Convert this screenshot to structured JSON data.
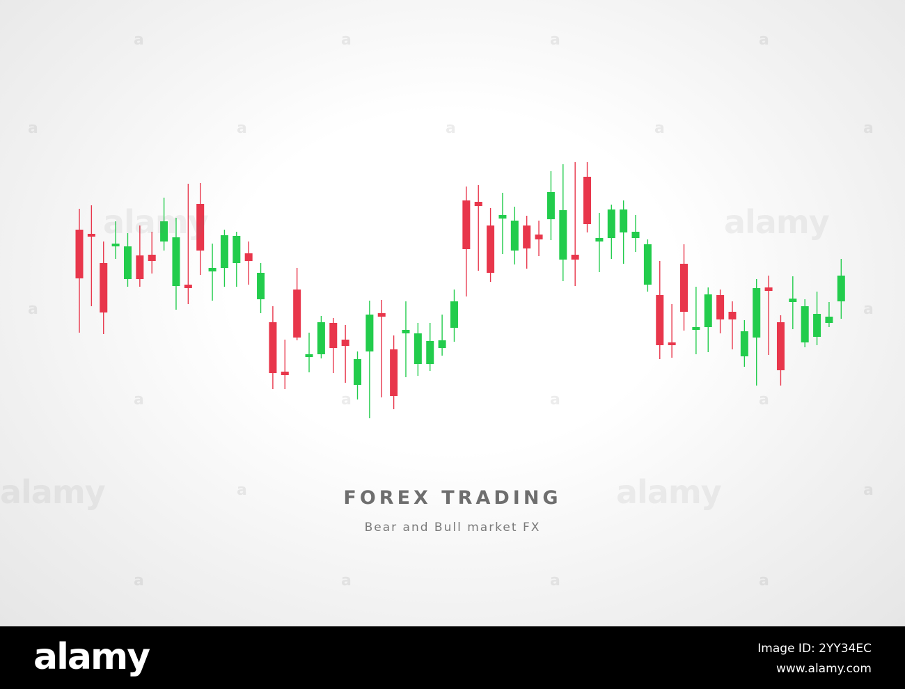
{
  "chart_data": {
    "type": "candlestick",
    "title": "FOREX TRADING",
    "subtitle": "Bear and Bull market FX",
    "colors": {
      "bull": "#22cc4c",
      "bear": "#e8364b"
    },
    "y_axis_note": "no axis printed; values in chart price units (higher = up)",
    "candles": [
      {
        "c": "bear",
        "o": 570,
        "cl": 500,
        "h": 600,
        "l": 422
      },
      {
        "c": "bear",
        "o": 564,
        "cl": 562,
        "h": 605,
        "l": 460
      },
      {
        "c": "bear",
        "o": 522,
        "cl": 451,
        "h": 553,
        "l": 420
      },
      {
        "c": "bull",
        "o": 547,
        "cl": 550,
        "h": 582,
        "l": 528
      },
      {
        "c": "bull",
        "o": 499,
        "cl": 546,
        "h": 565,
        "l": 488
      },
      {
        "c": "bear",
        "o": 533,
        "cl": 499,
        "h": 576,
        "l": 488
      },
      {
        "c": "bear",
        "o": 534,
        "cl": 525,
        "h": 567,
        "l": 507
      },
      {
        "c": "bull",
        "o": 553,
        "cl": 582,
        "h": 616,
        "l": 540
      },
      {
        "c": "bull",
        "o": 489,
        "cl": 559,
        "h": 587,
        "l": 455
      },
      {
        "c": "bear",
        "o": 491,
        "cl": 486,
        "h": 636,
        "l": 463
      },
      {
        "c": "bear",
        "o": 607,
        "cl": 540,
        "h": 637,
        "l": 505
      },
      {
        "c": "bull",
        "o": 510,
        "cl": 515,
        "h": 550,
        "l": 468
      },
      {
        "c": "bull",
        "o": 515,
        "cl": 562,
        "h": 570,
        "l": 488
      },
      {
        "c": "bull",
        "o": 522,
        "cl": 561,
        "h": 567,
        "l": 488
      },
      {
        "c": "bear",
        "o": 536,
        "cl": 525,
        "h": 553,
        "l": 491
      },
      {
        "c": "bull",
        "o": 470,
        "cl": 508,
        "h": 522,
        "l": 450
      },
      {
        "c": "bear",
        "o": 437,
        "cl": 364,
        "h": 460,
        "l": 341
      },
      {
        "c": "bear",
        "o": 366,
        "cl": 361,
        "h": 412,
        "l": 341
      },
      {
        "c": "bear",
        "o": 484,
        "cl": 415,
        "h": 515,
        "l": 411
      },
      {
        "c": "bull",
        "o": 387,
        "cl": 391,
        "h": 422,
        "l": 365
      },
      {
        "c": "bull",
        "o": 391,
        "cl": 437,
        "h": 446,
        "l": 385
      },
      {
        "c": "bear",
        "o": 436,
        "cl": 400,
        "h": 443,
        "l": 364
      },
      {
        "c": "bear",
        "o": 412,
        "cl": 403,
        "h": 433,
        "l": 350
      },
      {
        "c": "bull",
        "o": 347,
        "cl": 384,
        "h": 395,
        "l": 326
      },
      {
        "c": "bull",
        "o": 395,
        "cl": 448,
        "h": 468,
        "l": 299
      },
      {
        "c": "bear",
        "o": 450,
        "cl": 445,
        "h": 469,
        "l": 329
      },
      {
        "c": "bear",
        "o": 398,
        "cl": 331,
        "h": 418,
        "l": 312
      },
      {
        "c": "bull",
        "o": 421,
        "cl": 426,
        "h": 467,
        "l": 358
      },
      {
        "c": "bull",
        "o": 377,
        "cl": 421,
        "h": 436,
        "l": 360
      },
      {
        "c": "bull",
        "o": 377,
        "cl": 410,
        "h": 436,
        "l": 367
      },
      {
        "c": "bull",
        "o": 400,
        "cl": 411,
        "h": 448,
        "l": 389
      },
      {
        "c": "bull",
        "o": 429,
        "cl": 467,
        "h": 484,
        "l": 409
      },
      {
        "c": "bear",
        "o": 612,
        "cl": 542,
        "h": 632,
        "l": 474
      },
      {
        "c": "bear",
        "o": 610,
        "cl": 604,
        "h": 634,
        "l": 511
      },
      {
        "c": "bear",
        "o": 576,
        "cl": 508,
        "h": 601,
        "l": 495
      },
      {
        "c": "bull",
        "o": 586,
        "cl": 591,
        "h": 623,
        "l": 535
      },
      {
        "c": "bull",
        "o": 540,
        "cl": 583,
        "h": 603,
        "l": 520
      },
      {
        "c": "bear",
        "o": 576,
        "cl": 543,
        "h": 590,
        "l": 514
      },
      {
        "c": "bear",
        "o": 563,
        "cl": 556,
        "h": 583,
        "l": 532
      },
      {
        "c": "bull",
        "o": 585,
        "cl": 624,
        "h": 654,
        "l": 555
      },
      {
        "c": "bull",
        "o": 527,
        "cl": 598,
        "h": 664,
        "l": 496
      },
      {
        "c": "bear",
        "o": 534,
        "cl": 527,
        "h": 667,
        "l": 489
      },
      {
        "c": "bear",
        "o": 646,
        "cl": 578,
        "h": 667,
        "l": 566
      },
      {
        "c": "bull",
        "o": 553,
        "cl": 558,
        "h": 594,
        "l": 509
      },
      {
        "c": "bull",
        "o": 558,
        "cl": 599,
        "h": 606,
        "l": 528
      },
      {
        "c": "bull",
        "o": 566,
        "cl": 599,
        "h": 612,
        "l": 521
      },
      {
        "c": "bull",
        "o": 558,
        "cl": 567,
        "h": 591,
        "l": 538
      },
      {
        "c": "bull",
        "o": 491,
        "cl": 549,
        "h": 556,
        "l": 481
      },
      {
        "c": "bear",
        "o": 476,
        "cl": 404,
        "h": 525,
        "l": 384
      },
      {
        "c": "bear",
        "o": 408,
        "cl": 404,
        "h": 463,
        "l": 386
      },
      {
        "c": "bear",
        "o": 521,
        "cl": 452,
        "h": 549,
        "l": 425
      },
      {
        "c": "bull",
        "o": 426,
        "cl": 430,
        "h": 488,
        "l": 391
      },
      {
        "c": "bull",
        "o": 430,
        "cl": 477,
        "h": 487,
        "l": 394
      },
      {
        "c": "bear",
        "o": 476,
        "cl": 441,
        "h": 484,
        "l": 421
      },
      {
        "c": "bear",
        "o": 452,
        "cl": 441,
        "h": 467,
        "l": 398
      },
      {
        "c": "bull",
        "o": 388,
        "cl": 424,
        "h": 440,
        "l": 373
      },
      {
        "c": "bull",
        "o": 415,
        "cl": 486,
        "h": 499,
        "l": 346
      },
      {
        "c": "bear",
        "o": 487,
        "cl": 482,
        "h": 504,
        "l": 390
      },
      {
        "c": "bear",
        "o": 437,
        "cl": 368,
        "h": 447,
        "l": 346
      },
      {
        "c": "bull",
        "o": 466,
        "cl": 471,
        "h": 503,
        "l": 427
      },
      {
        "c": "bull",
        "o": 408,
        "cl": 460,
        "h": 470,
        "l": 401
      },
      {
        "c": "bull",
        "o": 416,
        "cl": 449,
        "h": 481,
        "l": 404
      },
      {
        "c": "bull",
        "o": 436,
        "cl": 445,
        "h": 466,
        "l": 430
      },
      {
        "c": "bull",
        "o": 467,
        "cl": 504,
        "h": 528,
        "l": 442
      }
    ]
  },
  "watermark": {
    "word": "alamy",
    "letter": "a"
  },
  "footer": {
    "logo": "alamy",
    "image_id": "Image ID: 2YY34EC",
    "site": "www.alamy.com"
  }
}
